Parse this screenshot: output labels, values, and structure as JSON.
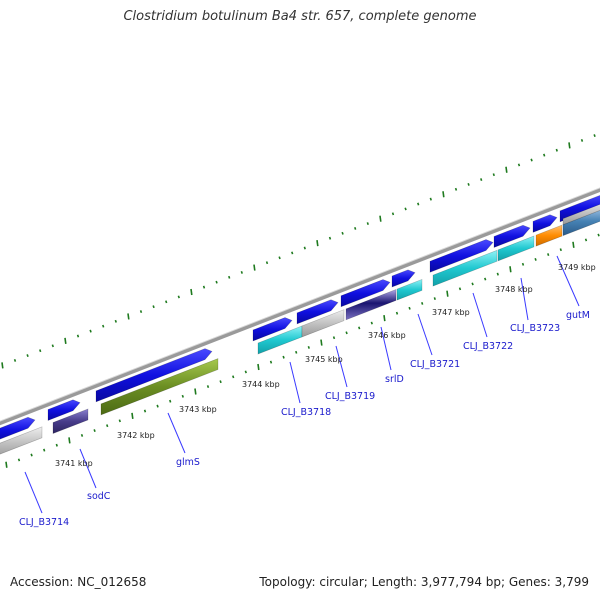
{
  "title": "Clostridium botulinum Ba4 str. 657, complete genome",
  "footer": {
    "accession": "Accession: NC_012658",
    "summary": "Topology: circular; Length: 3,977,794 bp; Genes: 3,799"
  },
  "kbp_labels": [
    "3741 kbp",
    "3742 kbp",
    "3743 kbp",
    "3744 kbp",
    "3745 kbp",
    "3746 kbp",
    "3747 kbp",
    "3748 kbp",
    "3749 kbp"
  ],
  "gene_labels": [
    "CLJ_B3714",
    "sodC",
    "glmS",
    "CLJ_B3718",
    "CLJ_B3719",
    "srlD",
    "CLJ_B3721",
    "CLJ_B3722",
    "CLJ_B3723",
    "gutM"
  ],
  "colors": {
    "backbone": "#888888",
    "cds_forward": "#1010e0",
    "gene_default": "#bdbdbd",
    "glmS": "#6b8e23",
    "sodC": "#483d8b",
    "srlD": "#4b3c8c",
    "teal": "#20c8d0",
    "gutM": "#ff8c00",
    "tick": "#1e7a1e",
    "label_line": "#3a3aff"
  }
}
